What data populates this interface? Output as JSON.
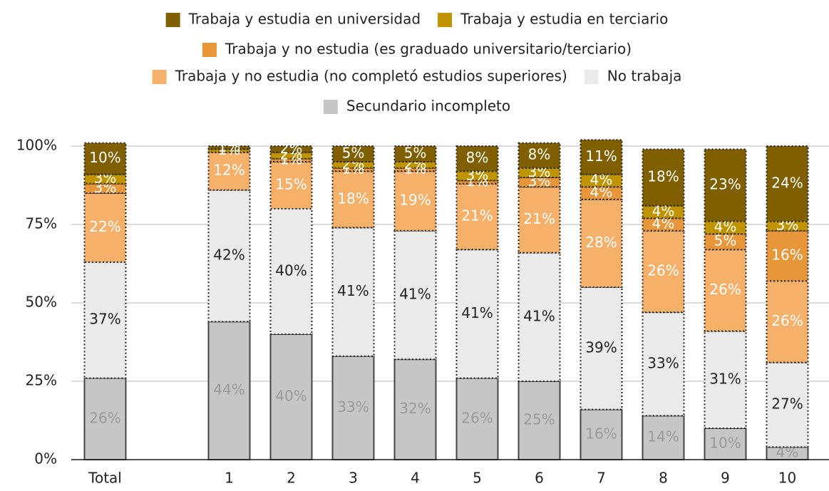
{
  "chart_data": {
    "type": "stacked_bar",
    "categories": [
      "Total",
      null,
      "1",
      "2",
      "3",
      "4",
      "5",
      "6",
      "7",
      "8",
      "9",
      "10"
    ],
    "series": [
      {
        "name": "Secundario incompleto",
        "color": "#c6c6c6",
        "label_color": "#9a9a9a",
        "values": [
          26,
          null,
          44,
          40,
          33,
          32,
          26,
          25,
          16,
          14,
          10,
          4
        ],
        "value_labels": [
          "26%",
          null,
          "44%",
          "40%",
          "33%",
          "32%",
          "26%",
          "25%",
          "16%",
          "14%",
          "10%",
          "4%"
        ]
      },
      {
        "name": "No trabaja",
        "color": "#ebebeb",
        "label_color": "#222222",
        "values": [
          37,
          null,
          42,
          40,
          41,
          41,
          41,
          41,
          39,
          33,
          31,
          27
        ],
        "value_labels": [
          "37%",
          null,
          "42%",
          "40%",
          "41%",
          "41%",
          "41%",
          "41%",
          "39%",
          "33%",
          "31%",
          "27%"
        ]
      },
      {
        "name": "Trabaja y no estudia (no completó estudios superiores)",
        "color": "#f5b06a",
        "label_color": "#ffffff",
        "values": [
          22,
          null,
          12,
          15,
          18,
          19,
          21,
          21,
          28,
          26,
          26,
          26
        ],
        "value_labels": [
          "22%",
          null,
          "12%",
          "15%",
          "18%",
          "19%",
          "21%",
          "21%",
          "28%",
          "26%",
          "26%",
          "26%"
        ]
      },
      {
        "name": "Trabaja y no estudia (es graduado universitario/terciario)",
        "color": "#e8963a",
        "label_color": "#ffffff",
        "values": [
          3,
          null,
          0,
          1,
          1,
          1,
          1,
          3,
          4,
          4,
          5,
          16
        ],
        "value_labels": [
          "3%",
          null,
          null,
          "1%",
          "1%",
          "1%",
          "1%",
          "3%",
          "4%",
          "4%",
          "5%",
          "16%"
        ]
      },
      {
        "name": "Trabaja y estudia en terciario",
        "color": "#c09300",
        "label_color": "#ffffff",
        "values": [
          3,
          null,
          1,
          2,
          2,
          2,
          3,
          3,
          4,
          4,
          4,
          3
        ],
        "value_labels": [
          "3%",
          null,
          "1%",
          "2%",
          "2%",
          "2%",
          "3%",
          "3%",
          "4%",
          "4%",
          "4%",
          "3%"
        ]
      },
      {
        "name": "Trabaja y estudia en universidad",
        "color": "#7f5f00",
        "label_color": "#ffffff",
        "values": [
          10,
          null,
          1,
          2,
          5,
          5,
          8,
          8,
          11,
          18,
          23,
          24
        ],
        "value_labels": [
          "10%",
          null,
          "1%",
          "2%",
          "5%",
          "5%",
          "8%",
          "8%",
          "11%",
          "18%",
          "23%",
          "24%"
        ]
      }
    ],
    "ylim": [
      0,
      100
    ],
    "yticks": [
      {
        "value": 0,
        "label": "0%"
      },
      {
        "value": 25,
        "label": "25%"
      },
      {
        "value": 50,
        "label": "50%"
      },
      {
        "value": 75,
        "label": "75%"
      },
      {
        "value": 100,
        "label": "100%"
      }
    ],
    "grid": true
  }
}
